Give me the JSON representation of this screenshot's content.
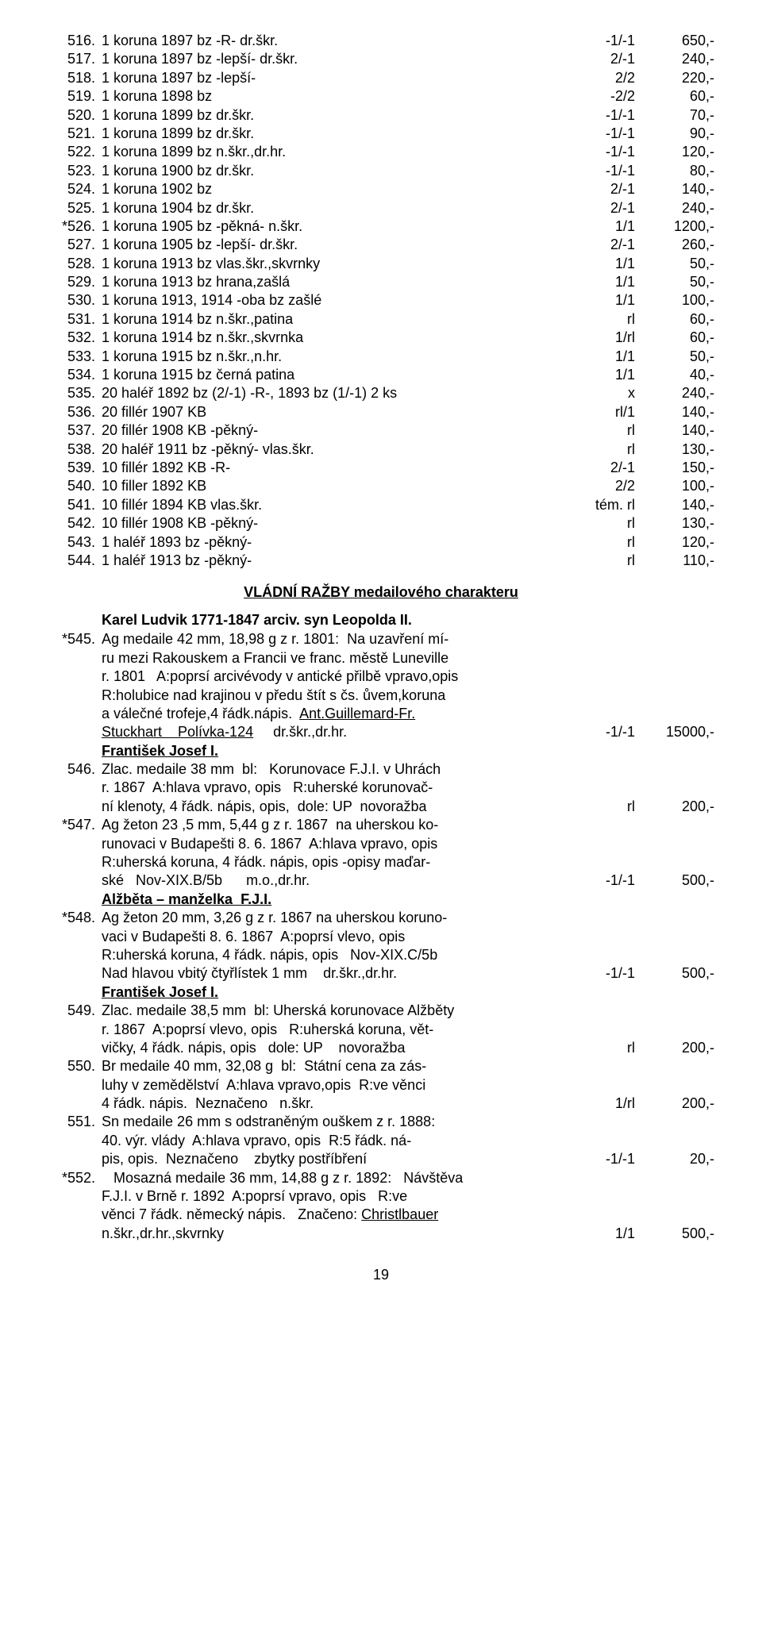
{
  "rows1": [
    {
      "n": "516.",
      "d": "1 koruna 1897 bz     -R-     dr.škr.",
      "g": "-1/-1",
      "p": "650,-"
    },
    {
      "n": "517.",
      "d": "1 koruna 1897 bz   -lepší-   dr.škr.",
      "g": "2/-1",
      "p": "240,-"
    },
    {
      "n": "518.",
      "d": "1 koruna 1897 bz   -lepší-",
      "g": "2/2",
      "p": "220,-"
    },
    {
      "n": "519.",
      "d": "1 koruna 1898 bz",
      "g": "-2/2",
      "p": "60,-"
    },
    {
      "n": "520.",
      "d": "1 koruna 1899 bz   dr.škr.",
      "g": "-1/-1",
      "p": "70,-"
    },
    {
      "n": "521.",
      "d": "1 koruna 1899 bz   dr.škr.",
      "g": "-1/-1",
      "p": "90,-"
    },
    {
      "n": "522.",
      "d": "1 koruna 1899 bz   n.škr.,dr.hr.",
      "g": "-1/-1",
      "p": "120,-"
    },
    {
      "n": "523.",
      "d": "1 koruna 1900 bz     dr.škr.",
      "g": "-1/-1",
      "p": "80,-"
    },
    {
      "n": "524.",
      "d": "1 koruna 1902 bz",
      "g": "2/-1",
      "p": "140,-"
    },
    {
      "n": "525.",
      "d": "1 koruna 1904 bz      dr.škr.",
      "g": "2/-1",
      "p": "240,-"
    },
    {
      "n": "*526.",
      "d": "1 koruna 1905 bz    -pěkná-   n.škr.",
      "g": "1/1",
      "p": "1200,-"
    },
    {
      "n": "527.",
      "d": "1 koruna 1905 bz    -lepší-   dr.škr.",
      "g": "2/-1",
      "p": "260,-"
    },
    {
      "n": "528.",
      "d": "1 koruna 1913 bz    vlas.škr.,skvrnky",
      "g": "1/1",
      "p": "50,-"
    },
    {
      "n": "529.",
      "d": "1 koruna 1913 bz    hrana,zašlá",
      "g": "1/1",
      "p": "50,-"
    },
    {
      "n": "530.",
      "d": "1 koruna 1913, 1914 -oba bz     zašlé",
      "g": "1/1",
      "p": "100,-"
    },
    {
      "n": "531.",
      "d": "1 koruna 1914 bz    n.škr.,patina",
      "g": "rl",
      "p": "60,-"
    },
    {
      "n": "532.",
      "d": "1 koruna 1914 bz    n.škr.,skvrnka",
      "g": "1/rl",
      "p": "60,-"
    },
    {
      "n": "533.",
      "d": "1 koruna 1915 bz    n.škr.,n.hr.",
      "g": "1/1",
      "p": "50,-"
    },
    {
      "n": "534.",
      "d": "1 koruna 1915 bz    černá patina",
      "g": "1/1",
      "p": "40,-"
    },
    {
      "n": "535.",
      "d": "20 haléř 1892 bz (2/-1)  -R-,  1893 bz  (1/-1)    2 ks",
      "g": "x",
      "p": "240,-"
    },
    {
      "n": "536.",
      "d": "20 fillér 1907 KB",
      "g": "rl/1",
      "p": "140,-"
    },
    {
      "n": "537.",
      "d": "20 fillér 1908 KB    -pěkný-",
      "g": "rl",
      "p": "140,-"
    },
    {
      "n": "538.",
      "d": "20 haléř 1911 bz    -pěkný-    vlas.škr.",
      "g": "rl",
      "p": "130,-"
    },
    {
      "n": "539.",
      "d": "10 fillér 1892 KB     -R-",
      "g": "2/-1",
      "p": "150,-"
    },
    {
      "n": "540.",
      "d": "10 filler 1892 KB",
      "g": "2/2",
      "p": "100,-"
    },
    {
      "n": "541.",
      "d": "10 fillér 1894 KB   vlas.škr.",
      "g": "tém. rl",
      "p": "140,-"
    },
    {
      "n": "542.",
      "d": "10 fillér 1908 KB   -pěkný-",
      "g": "rl",
      "p": "130,-"
    },
    {
      "n": "543.",
      "d": "1 haléř 1893 bz    -pěkný-",
      "g": "rl",
      "p": "120,-"
    },
    {
      "n": "544.",
      "d": "1 haléř 1913 bz    -pěkný-",
      "g": "rl",
      "p": "110,-"
    }
  ],
  "sectionTitle": "VLÁDNÍ RAŽBY  medailového charakteru",
  "subHead1": "Karel Ludvik  1771-1847 arciv. syn Leopolda II.",
  "item545": {
    "n": "*545.",
    "l1": "Ag medaile 42 mm, 18,98 g z r. 1801:  Na uzavření mí-",
    "l2": "ru mezi Rakouskem a Francii ve franc. městě Luneville",
    "l3": "r. 1801   A:poprsí arcivévody v antické přilbě vpravo,opis",
    "l4": "R:holubice nad krajinou v předu štít s čs. ůvem,koruna",
    "l5a": "a válečné trofeje,4 řádk.nápis.  ",
    "l5b": "Ant.Guillemard-Fr.",
    "l6a": "Stuckhart    Polívka-124",
    "l6b": "     dr.škr.,dr.hr.",
    "l6g": "-1/-1",
    "l6p": "15000,-"
  },
  "fj1": "František Josef I.",
  "item546": {
    "n": "546.",
    "l1": "Zlac. medaile 38 mm  bl:   Korunovace F.J.I. v Uhrách",
    "l2": "r. 1867  A:hlava vpravo, opis   R:uherské korunovač-",
    "l3": "ní klenoty, 4 řádk. nápis, opis,  dole: UP  novoražba",
    "g": "rl",
    "p": "200,-"
  },
  "item547": {
    "n": "*547.",
    "l1": "Ag žeton 23 ,5 mm, 5,44 g z r. 1867  na uherskou ko-",
    "l2": "runovaci v Budapešti 8. 6. 1867  A:hlava vpravo, opis",
    "l3": "R:uherská koruna, 4 řádk. nápis, opis -opisy maďar-",
    "l4": "ské   Nov-XIX.B/5b      m.o.,dr.hr.",
    "g": "-1/-1",
    "p": "500,-"
  },
  "alz": "Alžběta – manželka  F.J.I.",
  "item548": {
    "n": "*548.",
    "l1": "Ag žeton 20 mm, 3,26 g z r. 1867 na uherskou koruno-",
    "l2": "vaci v Budapešti 8. 6. 1867  A:poprsí vlevo, opis",
    "l3": "R:uherská koruna, 4 řádk. nápis, opis   Nov-XIX.C/5b",
    "l4": "Nad hlavou vbitý čtyřlístek 1 mm    dr.škr.,dr.hr.",
    "g": "-1/-1",
    "p": "500,-"
  },
  "fj2": "František Josef I.",
  "item549": {
    "n": "549.",
    "l1": "Zlac. medaile 38,5 mm  bl: Uherská korunovace Alžběty",
    "l2": "r. 1867  A:poprsí vlevo, opis   R:uherská koruna, vět-",
    "l3": "vičky, 4 řádk. nápis, opis   dole: UP    novoražba",
    "g": "rl",
    "p": "200,-"
  },
  "item550": {
    "n": "550.",
    "l1": "Br medaile 40 mm, 32,08 g  bl:  Státní cena za zás-",
    "l2": "luhy v zemědělství  A:hlava vpravo,opis  R:ve věnci",
    "l3": "4 řádk. nápis.  Neznačeno   n.škr.",
    "g": "1/rl",
    "p": "200,-"
  },
  "item551": {
    "n": "551.",
    "l1": "Sn medaile 26 mm s odstraněným ouškem z r. 1888:",
    "l2": "40. výr. vlády  A:hlava vpravo, opis  R:5 řádk. ná-",
    "l3": "pis, opis.  Neznačeno    zbytky postříbření",
    "g": "-1/-1",
    "p": "20,-"
  },
  "item552": {
    "n": "*552.",
    "l1": "   Mosazná medaile 36 mm, 14,88 g z r. 1892:   Návštěva",
    "l2": "F.J.I. v Brně r. 1892  A:poprsí vpravo, opis   R:ve",
    "l3a": "věnci 7 řádk. německý nápis.   Značeno: ",
    "l3b": "Christlbauer",
    "l4": "n.škr.,dr.hr.,skvrnky",
    "g": "1/1",
    "p": "500,-"
  },
  "pageNum": "19"
}
